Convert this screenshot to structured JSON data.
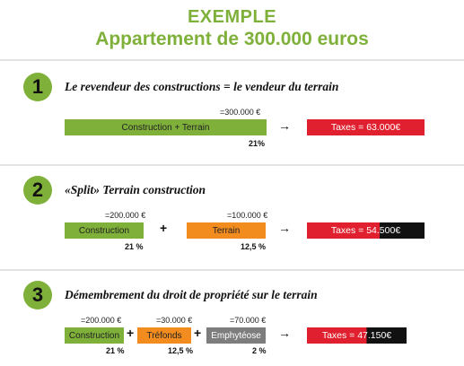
{
  "title": "EXEMPLE",
  "subtitle": "Appartement de 300.000 euros",
  "sections": [
    {
      "number": "1",
      "heading": "Le revendeur des constructions = le vendeur du terrain",
      "items": [
        {
          "amount": "=300.000 €",
          "label": "Construction + Terrain",
          "percent": "21%",
          "color": "#7fb03a"
        }
      ],
      "arrow": "→",
      "tax": {
        "label": "Taxes = 63.000€",
        "red_fraction": 1.0
      }
    },
    {
      "number": "2",
      "heading": "«Split» Terrain construction",
      "items": [
        {
          "amount": "=200.000 €",
          "label": "Construction",
          "percent": "21 %",
          "color": "#7fb03a"
        },
        {
          "amount": "=100.000 €",
          "label": "Terrain",
          "percent": "12,5 %",
          "color": "#f28c1f"
        }
      ],
      "operators": [
        "+"
      ],
      "arrow": "→",
      "tax": {
        "label": "Taxes = 54.500€",
        "red_fraction": 0.62
      }
    },
    {
      "number": "3",
      "heading": "Démembrement du droit de propriété sur le terrain",
      "items": [
        {
          "amount": "=200.000 €",
          "label": "Construction",
          "percent": "21 %",
          "color": "#7fb03a"
        },
        {
          "amount": "=30.000 €",
          "label": "Tréfonds",
          "percent": "12,5 %",
          "color": "#f28c1f"
        },
        {
          "amount": "=70.000 €",
          "label": "Emphytéose",
          "percent": "2 %",
          "color": "#7d7d7d"
        }
      ],
      "operators": [
        "+",
        "+"
      ],
      "arrow": "→",
      "tax": {
        "label": "Taxes = 47.150€",
        "red_fraction": 0.6
      }
    }
  ],
  "colors": {
    "accent": "#7fb03a",
    "tax_red": "#e0202e",
    "tax_black": "#111111"
  }
}
